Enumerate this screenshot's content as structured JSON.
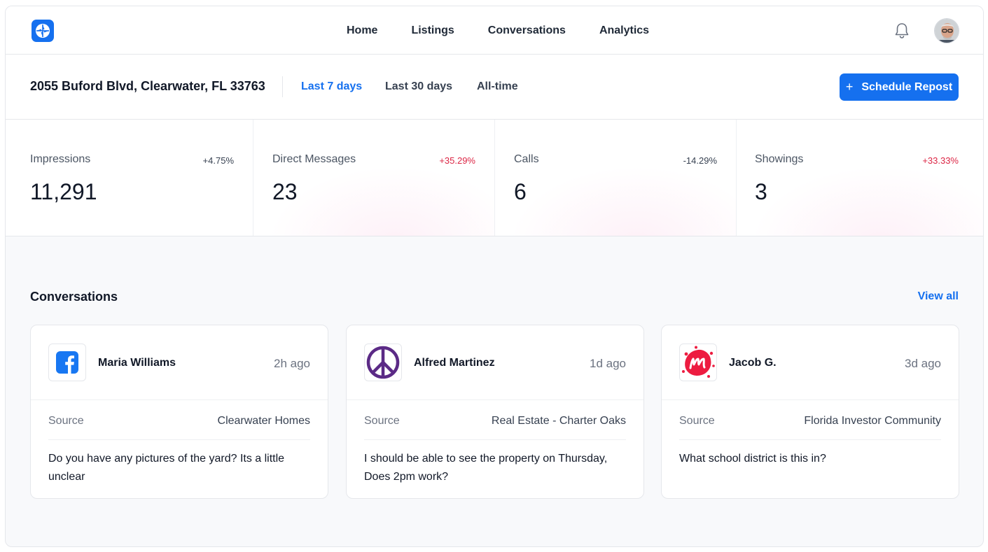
{
  "nav": {
    "links": [
      "Home",
      "Listings",
      "Conversations",
      "Analytics"
    ]
  },
  "header": {
    "address": "2055 Buford Blvd, Clearwater, FL 33763",
    "ranges": [
      "Last 7 days",
      "Last 30 days",
      "All-time"
    ],
    "active_range": "Last 7 days",
    "schedule_label": "Schedule Repost"
  },
  "stats": [
    {
      "label": "Impressions",
      "value": "11,291",
      "change": "+4.75%"
    },
    {
      "label": "Direct Messages",
      "value": "23",
      "change": "+35.29%"
    },
    {
      "label": "Calls",
      "value": "6",
      "change": "-14.29%"
    },
    {
      "label": "Showings",
      "value": "3",
      "change": "+33.33%"
    }
  ],
  "conversations": {
    "title": "Conversations",
    "view_all": "View all",
    "source_label": "Source",
    "items": [
      {
        "name": "Maria Williams",
        "time": "2h ago",
        "source": "Clearwater Homes",
        "message": "Do you have any pictures of the yard? Its a little unclear",
        "icon": "facebook-icon"
      },
      {
        "name": "Alfred Martinez",
        "time": "1d ago",
        "source": "Real Estate - Charter Oaks",
        "message": "I should be able to see the property on Thursday, Does 2pm work?",
        "icon": "peace-icon"
      },
      {
        "name": "Jacob G.",
        "time": "3d ago",
        "source": "Florida Investor Community",
        "message": "What school district is this in?",
        "icon": "meetup-icon"
      }
    ]
  },
  "colors": {
    "accent": "#1570ef",
    "positive_change": "#dc2645",
    "facebook": "#1877f2",
    "peace": "#5b2a86",
    "meetup": "#ed1c40"
  }
}
